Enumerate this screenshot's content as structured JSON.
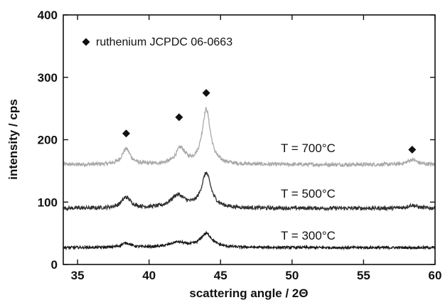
{
  "chart_data": {
    "type": "line",
    "title": "",
    "xlabel": "scattering angle / 2Θ",
    "ylabel": "intensity / cps",
    "xlim": [
      34,
      60
    ],
    "ylim": [
      0,
      400
    ],
    "x_ticks": [
      35,
      40,
      45,
      50,
      55,
      60
    ],
    "y_ticks": [
      0,
      100,
      200,
      300,
      400
    ],
    "x_tick_labels": [
      "35",
      "40",
      "45",
      "50",
      "55",
      "60"
    ],
    "y_tick_labels": [
      "0",
      "100",
      "200",
      "300",
      "400"
    ],
    "grid": false,
    "series": [
      {
        "name": "T = 700°C",
        "color": "#a8a8a8",
        "baseline": 160,
        "noise": 3,
        "peaks": [
          {
            "x": 38.4,
            "height": 25,
            "width": 0.35
          },
          {
            "x": 42.2,
            "height": 25,
            "width": 0.4
          },
          {
            "x": 44.0,
            "height": 88,
            "width": 0.35
          },
          {
            "x": 58.4,
            "height": 8,
            "width": 0.4
          }
        ]
      },
      {
        "name": "T = 500°C",
        "color": "#303030",
        "baseline": 90,
        "noise": 3,
        "peaks": [
          {
            "x": 38.4,
            "height": 17,
            "width": 0.4
          },
          {
            "x": 42.0,
            "height": 20,
            "width": 0.6
          },
          {
            "x": 44.0,
            "height": 55,
            "width": 0.4
          },
          {
            "x": 58.4,
            "height": 5,
            "width": 0.4
          }
        ]
      },
      {
        "name": "T = 300°C",
        "color": "#1a1a1a",
        "baseline": 27,
        "noise": 2,
        "peaks": [
          {
            "x": 38.4,
            "height": 7,
            "width": 0.4
          },
          {
            "x": 42.0,
            "height": 8,
            "width": 0.7
          },
          {
            "x": 44.0,
            "height": 22,
            "width": 0.5
          }
        ]
      }
    ],
    "reference_markers": {
      "name": "ruthenium JCPDC 06-0663",
      "symbol": "diamond",
      "points": [
        {
          "x": 38.4,
          "y": 210
        },
        {
          "x": 42.1,
          "y": 236
        },
        {
          "x": 44.0,
          "y": 275
        },
        {
          "x": 58.4,
          "y": 184
        }
      ]
    },
    "legend_position": "top-left"
  }
}
